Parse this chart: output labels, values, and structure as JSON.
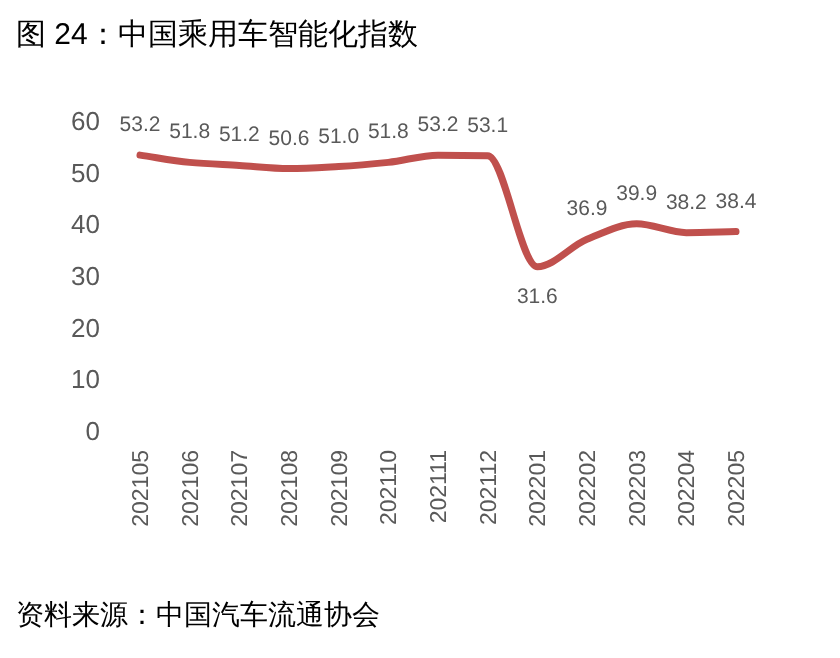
{
  "chart_data": {
    "type": "line",
    "title": "图 24：中国乘用车智能化指数",
    "categories": [
      "202105",
      "202106",
      "202107",
      "202108",
      "202109",
      "202110",
      "202111",
      "202112",
      "202201",
      "202202",
      "202203",
      "202204",
      "202205"
    ],
    "series": [
      {
        "color": "#c0504d",
        "values": [
          53.2,
          51.8,
          51.2,
          50.6,
          51.0,
          51.8,
          53.2,
          53.1,
          31.6,
          36.9,
          39.9,
          38.2,
          38.4
        ]
      }
    ],
    "ylim": [
      0,
      60
    ],
    "yticks": [
      0,
      10,
      20,
      30,
      40,
      50,
      60
    ],
    "grid": false,
    "value_labels": [
      "53.2",
      "51.8",
      "51.2",
      "50.6",
      "51.0",
      "51.8",
      "53.2",
      "53.1",
      "31.6",
      "36.9",
      "39.9",
      "38.2",
      "38.4"
    ],
    "marker": "none",
    "line_style": "solid",
    "annotations": [
      "资料来源：中国汽车流通协会"
    ]
  }
}
